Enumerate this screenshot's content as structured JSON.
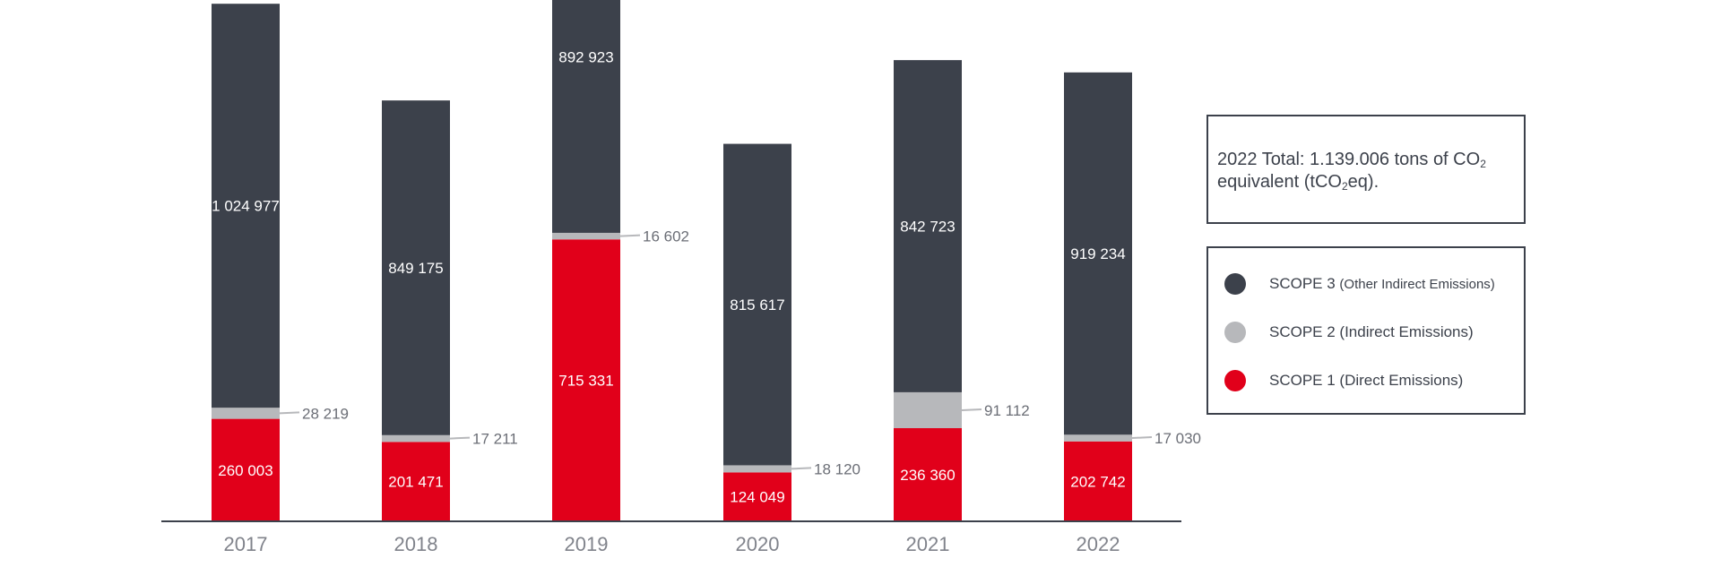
{
  "chart_data": {
    "type": "bar",
    "stacked": true,
    "categories": [
      "2017",
      "2018",
      "2019",
      "2020",
      "2021",
      "2022"
    ],
    "series": [
      {
        "name": "SCOPE 1 (Direct Emissions)",
        "color": "#e1001a",
        "values": [
          260003,
          201471,
          715331,
          124049,
          236360,
          202742
        ],
        "labels": [
          "260 003",
          "201 471",
          "715 331",
          "124 049",
          "236 360",
          "202 742"
        ]
      },
      {
        "name": "SCOPE 2 (Indirect Emissions)",
        "color": "#b7b8bb",
        "values": [
          28219,
          17211,
          16602,
          18120,
          91112,
          17030
        ],
        "labels": [
          "28 219",
          "17 211",
          "16 602",
          "18 120",
          "91 112",
          "17 030"
        ]
      },
      {
        "name": "SCOPE 3 (Other Indirect Emissions)",
        "color": "#3c414b",
        "values": [
          1024977,
          849175,
          892923,
          815617,
          842723,
          919234
        ],
        "labels": [
          "1 024 977",
          "849 175",
          "892 923",
          "815 617",
          "842 723",
          "919 234"
        ]
      }
    ],
    "grid": false,
    "legend_position": "right",
    "axis_color": "#3c414b"
  },
  "total_box": {
    "prefix": "2022 Total: 1.139.006 tons of CO",
    "sub1": "2",
    "line2_a": "equivalent (tCO",
    "sub2": "2",
    "line2_b": "eq)."
  },
  "legend": {
    "items": [
      {
        "main": "SCOPE 3 ",
        "small": "(Other Indirect Emissions)",
        "color": "#3c414b"
      },
      {
        "main": "SCOPE 2 (Indirect Emissions)",
        "small": "",
        "color": "#b7b8bb"
      },
      {
        "main": "SCOPE 1 (Direct Emissions)",
        "small": "",
        "color": "#e1001a"
      }
    ]
  }
}
